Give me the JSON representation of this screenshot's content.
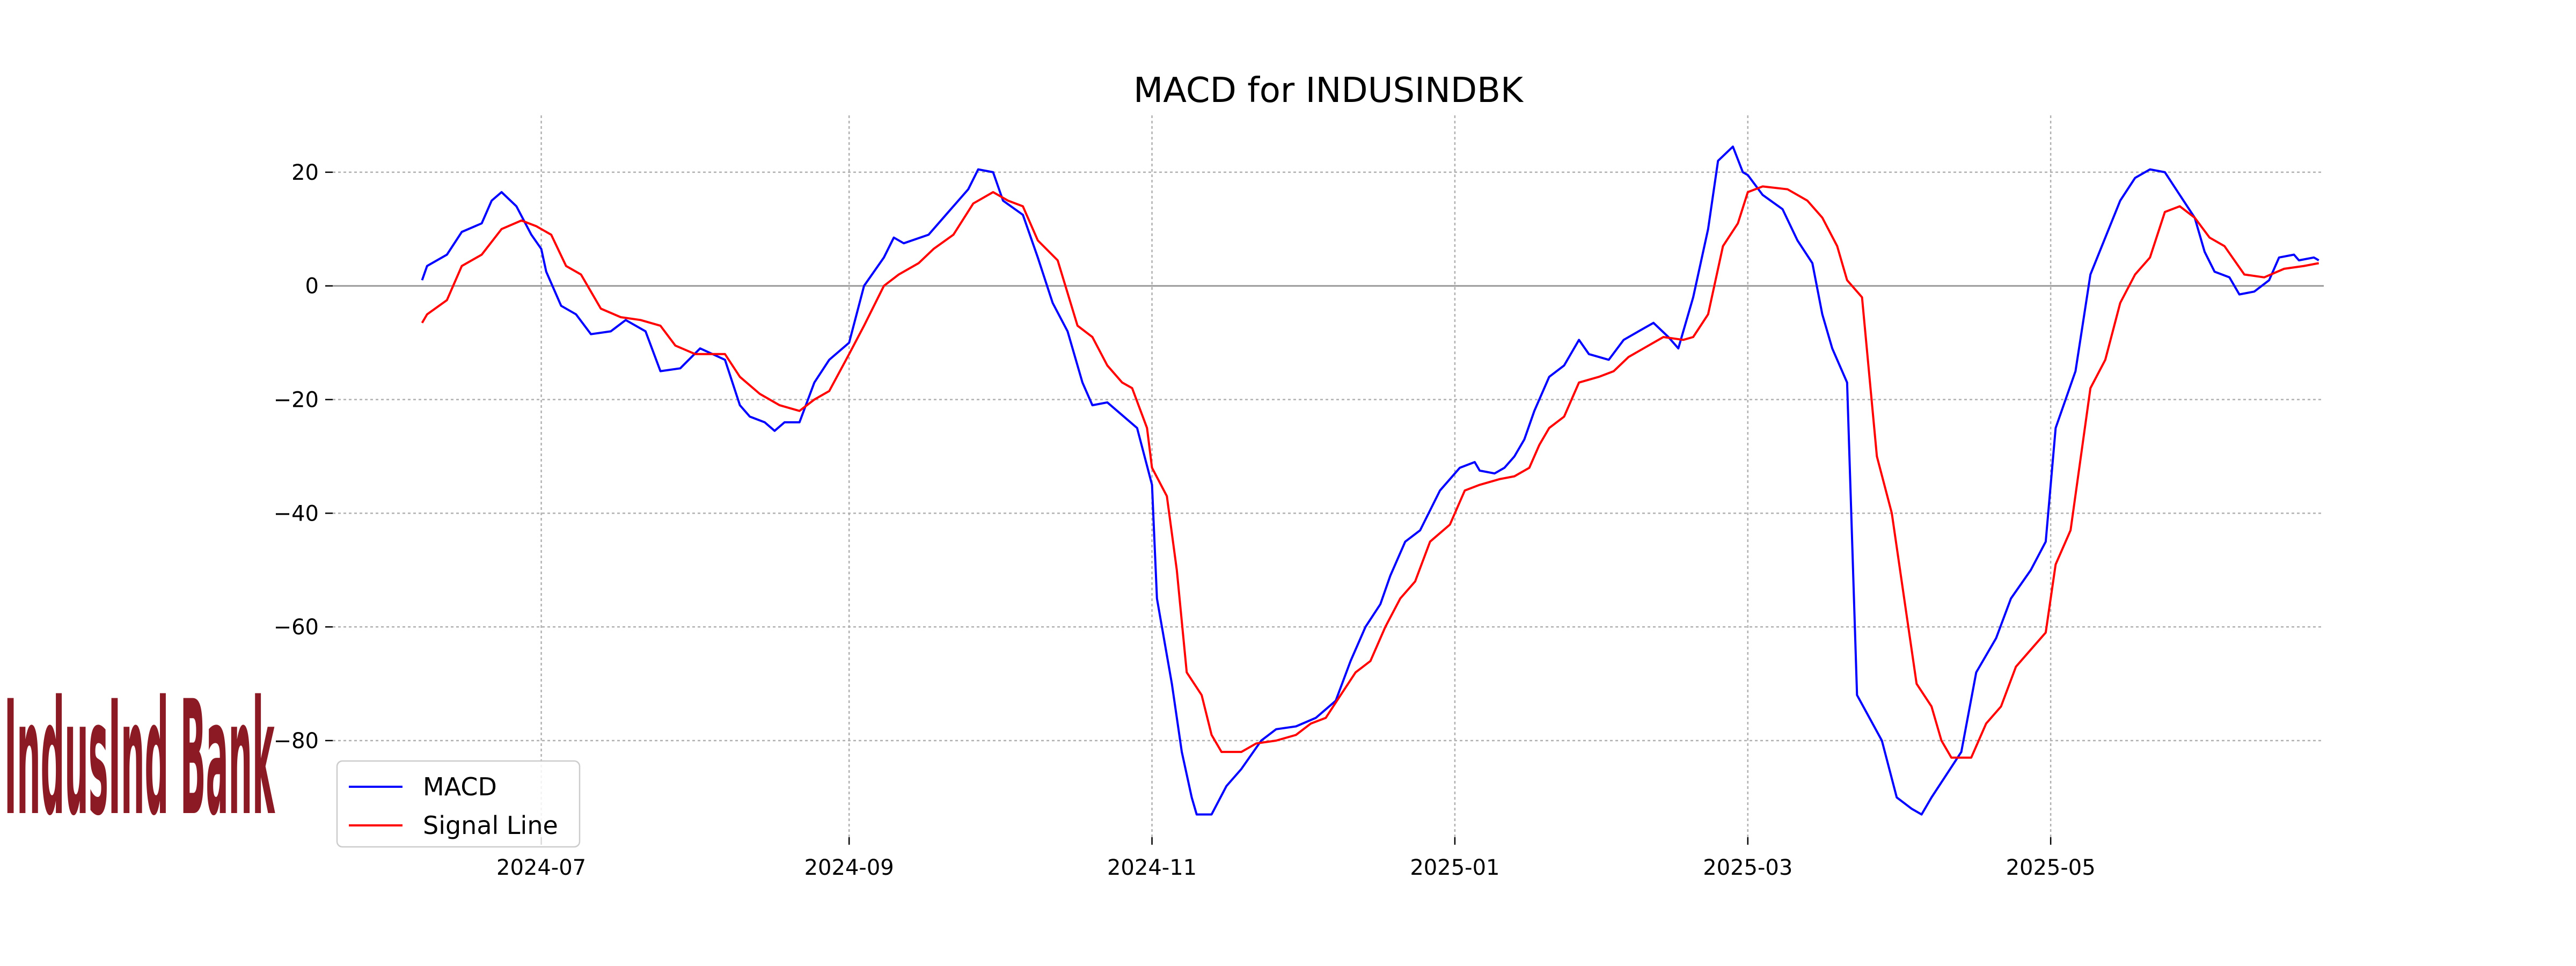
{
  "chart_data": {
    "type": "line",
    "title": "MACD for INDUSINDBK",
    "xlabel": "",
    "ylabel": "",
    "x_range": [
      "2024-05-20",
      "2025-06-25"
    ],
    "ylim": [
      -97,
      30
    ],
    "x_ticks": [
      {
        "date": "2024-07-01",
        "label": "2024-07"
      },
      {
        "date": "2024-09-01",
        "label": "2024-09"
      },
      {
        "date": "2024-11-01",
        "label": "2024-11"
      },
      {
        "date": "2025-01-01",
        "label": "2025-01"
      },
      {
        "date": "2025-03-01",
        "label": "2025-03"
      },
      {
        "date": "2025-05-01",
        "label": "2025-05"
      }
    ],
    "y_ticks": [
      {
        "value": 20,
        "label": "20"
      },
      {
        "value": 0,
        "label": "0"
      },
      {
        "value": -20,
        "label": "−20"
      },
      {
        "value": -40,
        "label": "−40"
      },
      {
        "value": -60,
        "label": "−60"
      },
      {
        "value": -80,
        "label": "−80"
      }
    ],
    "grid": true,
    "zero_line": true,
    "legend_position": "bottom-left",
    "series": [
      {
        "name": "MACD",
        "color": "#0000ff",
        "points": [
          [
            "2024-06-07",
            1
          ],
          [
            "2024-06-08",
            3.5
          ],
          [
            "2024-06-12",
            5.5
          ],
          [
            "2024-06-15",
            9.5
          ],
          [
            "2024-06-19",
            11
          ],
          [
            "2024-06-21",
            15
          ],
          [
            "2024-06-23",
            16.5
          ],
          [
            "2024-06-26",
            14
          ],
          [
            "2024-06-29",
            9
          ],
          [
            "2024-07-01",
            6.5
          ],
          [
            "2024-07-02",
            2.5
          ],
          [
            "2024-07-05",
            -3.5
          ],
          [
            "2024-07-08",
            -5
          ],
          [
            "2024-07-11",
            -8.5
          ],
          [
            "2024-07-15",
            -8
          ],
          [
            "2024-07-18",
            -6
          ],
          [
            "2024-07-22",
            -8
          ],
          [
            "2024-07-25",
            -15
          ],
          [
            "2024-07-29",
            -14.5
          ],
          [
            "2024-08-02",
            -11
          ],
          [
            "2024-08-07",
            -13
          ],
          [
            "2024-08-10",
            -21
          ],
          [
            "2024-08-12",
            -23
          ],
          [
            "2024-08-15",
            -24
          ],
          [
            "2024-08-17",
            -25.5
          ],
          [
            "2024-08-19",
            -24
          ],
          [
            "2024-08-22",
            -24
          ],
          [
            "2024-08-25",
            -17
          ],
          [
            "2024-08-28",
            -13
          ],
          [
            "2024-09-01",
            -10
          ],
          [
            "2024-09-04",
            0
          ],
          [
            "2024-09-08",
            5
          ],
          [
            "2024-09-10",
            8.5
          ],
          [
            "2024-09-12",
            7.5
          ],
          [
            "2024-09-17",
            9
          ],
          [
            "2024-09-21",
            13
          ],
          [
            "2024-09-25",
            17
          ],
          [
            "2024-09-27",
            20.5
          ],
          [
            "2024-09-30",
            20
          ],
          [
            "2024-10-02",
            15
          ],
          [
            "2024-10-06",
            12.5
          ],
          [
            "2024-10-09",
            5
          ],
          [
            "2024-10-12",
            -3
          ],
          [
            "2024-10-15",
            -8
          ],
          [
            "2024-10-18",
            -17
          ],
          [
            "2024-10-20",
            -21
          ],
          [
            "2024-10-23",
            -20.5
          ],
          [
            "2024-10-25",
            -22
          ],
          [
            "2024-10-29",
            -25
          ],
          [
            "2024-11-01",
            -35
          ],
          [
            "2024-11-02",
            -55
          ],
          [
            "2024-11-05",
            -70
          ],
          [
            "2024-11-07",
            -82
          ],
          [
            "2024-11-09",
            -90
          ],
          [
            "2024-11-10",
            -93
          ],
          [
            "2024-11-13",
            -93
          ],
          [
            "2024-11-16",
            -88
          ],
          [
            "2024-11-19",
            -85
          ],
          [
            "2024-11-23",
            -80
          ],
          [
            "2024-11-26",
            -78
          ],
          [
            "2024-11-30",
            -77.5
          ],
          [
            "2024-12-04",
            -76
          ],
          [
            "2024-12-08",
            -73
          ],
          [
            "2024-12-11",
            -66
          ],
          [
            "2024-12-14",
            -60
          ],
          [
            "2024-12-17",
            -56
          ],
          [
            "2024-12-19",
            -51
          ],
          [
            "2024-12-22",
            -45
          ],
          [
            "2024-12-25",
            -43
          ],
          [
            "2024-12-29",
            -36
          ],
          [
            "2025-01-02",
            -32
          ],
          [
            "2025-01-05",
            -31
          ],
          [
            "2025-01-06",
            -32.5
          ],
          [
            "2025-01-09",
            -33
          ],
          [
            "2025-01-11",
            -32
          ],
          [
            "2025-01-13",
            -30
          ],
          [
            "2025-01-15",
            -27
          ],
          [
            "2025-01-17",
            -22
          ],
          [
            "2025-01-20",
            -16
          ],
          [
            "2025-01-23",
            -14
          ],
          [
            "2025-01-26",
            -9.5
          ],
          [
            "2025-01-28",
            -12
          ],
          [
            "2025-02-01",
            -13
          ],
          [
            "2025-02-04",
            -9.5
          ],
          [
            "2025-02-07",
            -8
          ],
          [
            "2025-02-10",
            -6.5
          ],
          [
            "2025-02-13",
            -9
          ],
          [
            "2025-02-15",
            -11
          ],
          [
            "2025-02-18",
            -2
          ],
          [
            "2025-02-21",
            10
          ],
          [
            "2025-02-23",
            22
          ],
          [
            "2025-02-26",
            24.5
          ],
          [
            "2025-02-28",
            20
          ],
          [
            "2025-03-01",
            19.5
          ],
          [
            "2025-03-04",
            16
          ],
          [
            "2025-03-08",
            13.5
          ],
          [
            "2025-03-11",
            8
          ],
          [
            "2025-03-14",
            4
          ],
          [
            "2025-03-16",
            -5
          ],
          [
            "2025-03-18",
            -11
          ],
          [
            "2025-03-21",
            -17
          ],
          [
            "2025-03-23",
            -72
          ],
          [
            "2025-03-28",
            -80
          ],
          [
            "2025-03-31",
            -90
          ],
          [
            "2025-04-03",
            -92
          ],
          [
            "2025-04-05",
            -93
          ],
          [
            "2025-04-07",
            -90
          ],
          [
            "2025-04-10",
            -86
          ],
          [
            "2025-04-13",
            -82
          ],
          [
            "2025-04-16",
            -68
          ],
          [
            "2025-04-20",
            -62
          ],
          [
            "2025-04-23",
            -55
          ],
          [
            "2025-04-27",
            -50
          ],
          [
            "2025-04-30",
            -45
          ],
          [
            "2025-05-02",
            -25
          ],
          [
            "2025-05-06",
            -15
          ],
          [
            "2025-05-09",
            2
          ],
          [
            "2025-05-12",
            8.5
          ],
          [
            "2025-05-15",
            15
          ],
          [
            "2025-05-18",
            19
          ],
          [
            "2025-05-21",
            20.5
          ],
          [
            "2025-05-24",
            20
          ],
          [
            "2025-05-27",
            16
          ],
          [
            "2025-05-30",
            12
          ],
          [
            "2025-06-01",
            6
          ],
          [
            "2025-06-03",
            2.5
          ],
          [
            "2025-06-06",
            1.5
          ],
          [
            "2025-06-08",
            -1.5
          ],
          [
            "2025-06-11",
            -1
          ],
          [
            "2025-06-14",
            1
          ],
          [
            "2025-06-16",
            5
          ],
          [
            "2025-06-19",
            5.5
          ],
          [
            "2025-06-20",
            4.5
          ],
          [
            "2025-06-23",
            5
          ],
          [
            "2025-06-24",
            4.5
          ]
        ]
      },
      {
        "name": "Signal Line",
        "color": "#ff0000",
        "points": [
          [
            "2024-06-07",
            -6.5
          ],
          [
            "2024-06-08",
            -5
          ],
          [
            "2024-06-12",
            -2.5
          ],
          [
            "2024-06-15",
            3.5
          ],
          [
            "2024-06-19",
            5.5
          ],
          [
            "2024-06-23",
            10
          ],
          [
            "2024-06-27",
            11.5
          ],
          [
            "2024-06-30",
            10.5
          ],
          [
            "2024-07-03",
            9
          ],
          [
            "2024-07-06",
            3.5
          ],
          [
            "2024-07-09",
            2
          ],
          [
            "2024-07-13",
            -4
          ],
          [
            "2024-07-17",
            -5.5
          ],
          [
            "2024-07-21",
            -6
          ],
          [
            "2024-07-25",
            -7
          ],
          [
            "2024-07-28",
            -10.5
          ],
          [
            "2024-08-01",
            -12
          ],
          [
            "2024-08-07",
            -12
          ],
          [
            "2024-08-10",
            -16
          ],
          [
            "2024-08-14",
            -19
          ],
          [
            "2024-08-18",
            -21
          ],
          [
            "2024-08-22",
            -22
          ],
          [
            "2024-08-25",
            -20
          ],
          [
            "2024-08-28",
            -18.5
          ],
          [
            "2024-09-01",
            -12
          ],
          [
            "2024-09-04",
            -7
          ],
          [
            "2024-09-08",
            0
          ],
          [
            "2024-09-11",
            2
          ],
          [
            "2024-09-15",
            4
          ],
          [
            "2024-09-18",
            6.5
          ],
          [
            "2024-09-22",
            9
          ],
          [
            "2024-09-26",
            14.5
          ],
          [
            "2024-09-30",
            16.5
          ],
          [
            "2024-10-03",
            15
          ],
          [
            "2024-10-06",
            14
          ],
          [
            "2024-10-09",
            8
          ],
          [
            "2024-10-13",
            4.5
          ],
          [
            "2024-10-17",
            -7
          ],
          [
            "2024-10-20",
            -9
          ],
          [
            "2024-10-23",
            -14
          ],
          [
            "2024-10-26",
            -17
          ],
          [
            "2024-10-28",
            -18
          ],
          [
            "2024-10-31",
            -25
          ],
          [
            "2024-11-01",
            -32
          ],
          [
            "2024-11-04",
            -37
          ],
          [
            "2024-11-06",
            -50
          ],
          [
            "2024-11-08",
            -68
          ],
          [
            "2024-11-11",
            -72
          ],
          [
            "2024-11-13",
            -79
          ],
          [
            "2024-11-15",
            -82
          ],
          [
            "2024-11-19",
            -82
          ],
          [
            "2024-11-22",
            -80.5
          ],
          [
            "2024-11-26",
            -80
          ],
          [
            "2024-11-30",
            -79
          ],
          [
            "2024-12-03",
            -77
          ],
          [
            "2024-12-06",
            -76
          ],
          [
            "2024-12-09",
            -72
          ],
          [
            "2024-12-12",
            -68
          ],
          [
            "2024-12-15",
            -66
          ],
          [
            "2024-12-18",
            -60
          ],
          [
            "2024-12-21",
            -55
          ],
          [
            "2024-12-24",
            -52
          ],
          [
            "2024-12-27",
            -45
          ],
          [
            "2024-12-31",
            -42
          ],
          [
            "2025-01-03",
            -36
          ],
          [
            "2025-01-06",
            -35
          ],
          [
            "2025-01-10",
            -34
          ],
          [
            "2025-01-13",
            -33.5
          ],
          [
            "2025-01-16",
            -32
          ],
          [
            "2025-01-18",
            -28
          ],
          [
            "2025-01-20",
            -25
          ],
          [
            "2025-01-23",
            -23
          ],
          [
            "2025-01-26",
            -17
          ],
          [
            "2025-01-30",
            -16
          ],
          [
            "2025-02-02",
            -15
          ],
          [
            "2025-02-05",
            -12.5
          ],
          [
            "2025-02-08",
            -11
          ],
          [
            "2025-02-12",
            -9
          ],
          [
            "2025-02-16",
            -9.5
          ],
          [
            "2025-02-18",
            -9
          ],
          [
            "2025-02-21",
            -5
          ],
          [
            "2025-02-24",
            7
          ],
          [
            "2025-02-27",
            11
          ],
          [
            "2025-03-01",
            16.5
          ],
          [
            "2025-03-04",
            17.5
          ],
          [
            "2025-03-09",
            17
          ],
          [
            "2025-03-13",
            15
          ],
          [
            "2025-03-16",
            12
          ],
          [
            "2025-03-19",
            7
          ],
          [
            "2025-03-21",
            1
          ],
          [
            "2025-03-24",
            -2
          ],
          [
            "2025-03-27",
            -30
          ],
          [
            "2025-03-30",
            -40
          ],
          [
            "2025-04-02",
            -58
          ],
          [
            "2025-04-04",
            -70
          ],
          [
            "2025-04-07",
            -74
          ],
          [
            "2025-04-09",
            -80
          ],
          [
            "2025-04-11",
            -83
          ],
          [
            "2025-04-15",
            -83
          ],
          [
            "2025-04-18",
            -77
          ],
          [
            "2025-04-21",
            -74
          ],
          [
            "2025-04-24",
            -67
          ],
          [
            "2025-04-27",
            -64
          ],
          [
            "2025-04-30",
            -61
          ],
          [
            "2025-05-02",
            -49
          ],
          [
            "2025-05-05",
            -43
          ],
          [
            "2025-05-09",
            -18
          ],
          [
            "2025-05-12",
            -13
          ],
          [
            "2025-05-15",
            -3
          ],
          [
            "2025-05-18",
            2
          ],
          [
            "2025-05-21",
            5
          ],
          [
            "2025-05-24",
            13
          ],
          [
            "2025-05-27",
            14
          ],
          [
            "2025-05-30",
            12
          ],
          [
            "2025-06-02",
            8.5
          ],
          [
            "2025-06-05",
            7
          ],
          [
            "2025-06-09",
            2
          ],
          [
            "2025-06-13",
            1.5
          ],
          [
            "2025-06-17",
            3
          ],
          [
            "2025-06-21",
            3.5
          ],
          [
            "2025-06-24",
            4
          ]
        ]
      }
    ]
  },
  "logo": {
    "text": "IndusInd Bank",
    "color": "#8b1a24"
  }
}
